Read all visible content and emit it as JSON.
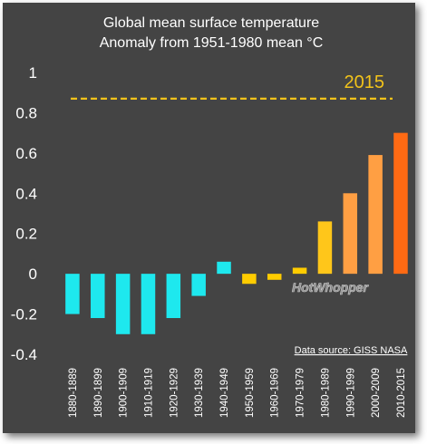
{
  "chart_data": {
    "type": "bar",
    "title": [
      "Global mean surface temperature",
      "Anomaly from 1951-1980 mean °C"
    ],
    "xlabel": "",
    "ylabel": "",
    "ylim": [
      -0.4,
      1
    ],
    "yticks": [
      "1",
      "0.8",
      "0.6",
      "0.4",
      "0.2",
      "0",
      "-0.2",
      "-0.4"
    ],
    "grid": false,
    "categories": [
      "1880-1889",
      "1890-1899",
      "1900-1909",
      "1910-1919",
      "1920-1929",
      "1930-1939",
      "1940-1949",
      "1950-1959",
      "1960-1969",
      "1970-1979",
      "1980-1989",
      "1990-1999",
      "2000-2009",
      "2010-2015"
    ],
    "values": [
      -0.2,
      -0.22,
      -0.3,
      -0.3,
      -0.22,
      -0.11,
      0.06,
      -0.05,
      -0.03,
      0.03,
      0.26,
      0.4,
      0.59,
      0.7
    ],
    "colors": [
      "#1ee8ee",
      "#1ee8ee",
      "#1ee8ee",
      "#1ee8ee",
      "#1ee8ee",
      "#1ee8ee",
      "#1ee8ee",
      "#ffcc00",
      "#ffcc00",
      "#ffcc00",
      "#ffc61a",
      "#ff9f43",
      "#ff9f43",
      "#ff6a13"
    ],
    "reference_line": {
      "label": "2015",
      "value": 0.87,
      "color": "#f2c31a",
      "style": "dashed"
    },
    "annotations": {
      "source": "Data source: GISS NASA",
      "watermark": "HotWhopper"
    }
  }
}
